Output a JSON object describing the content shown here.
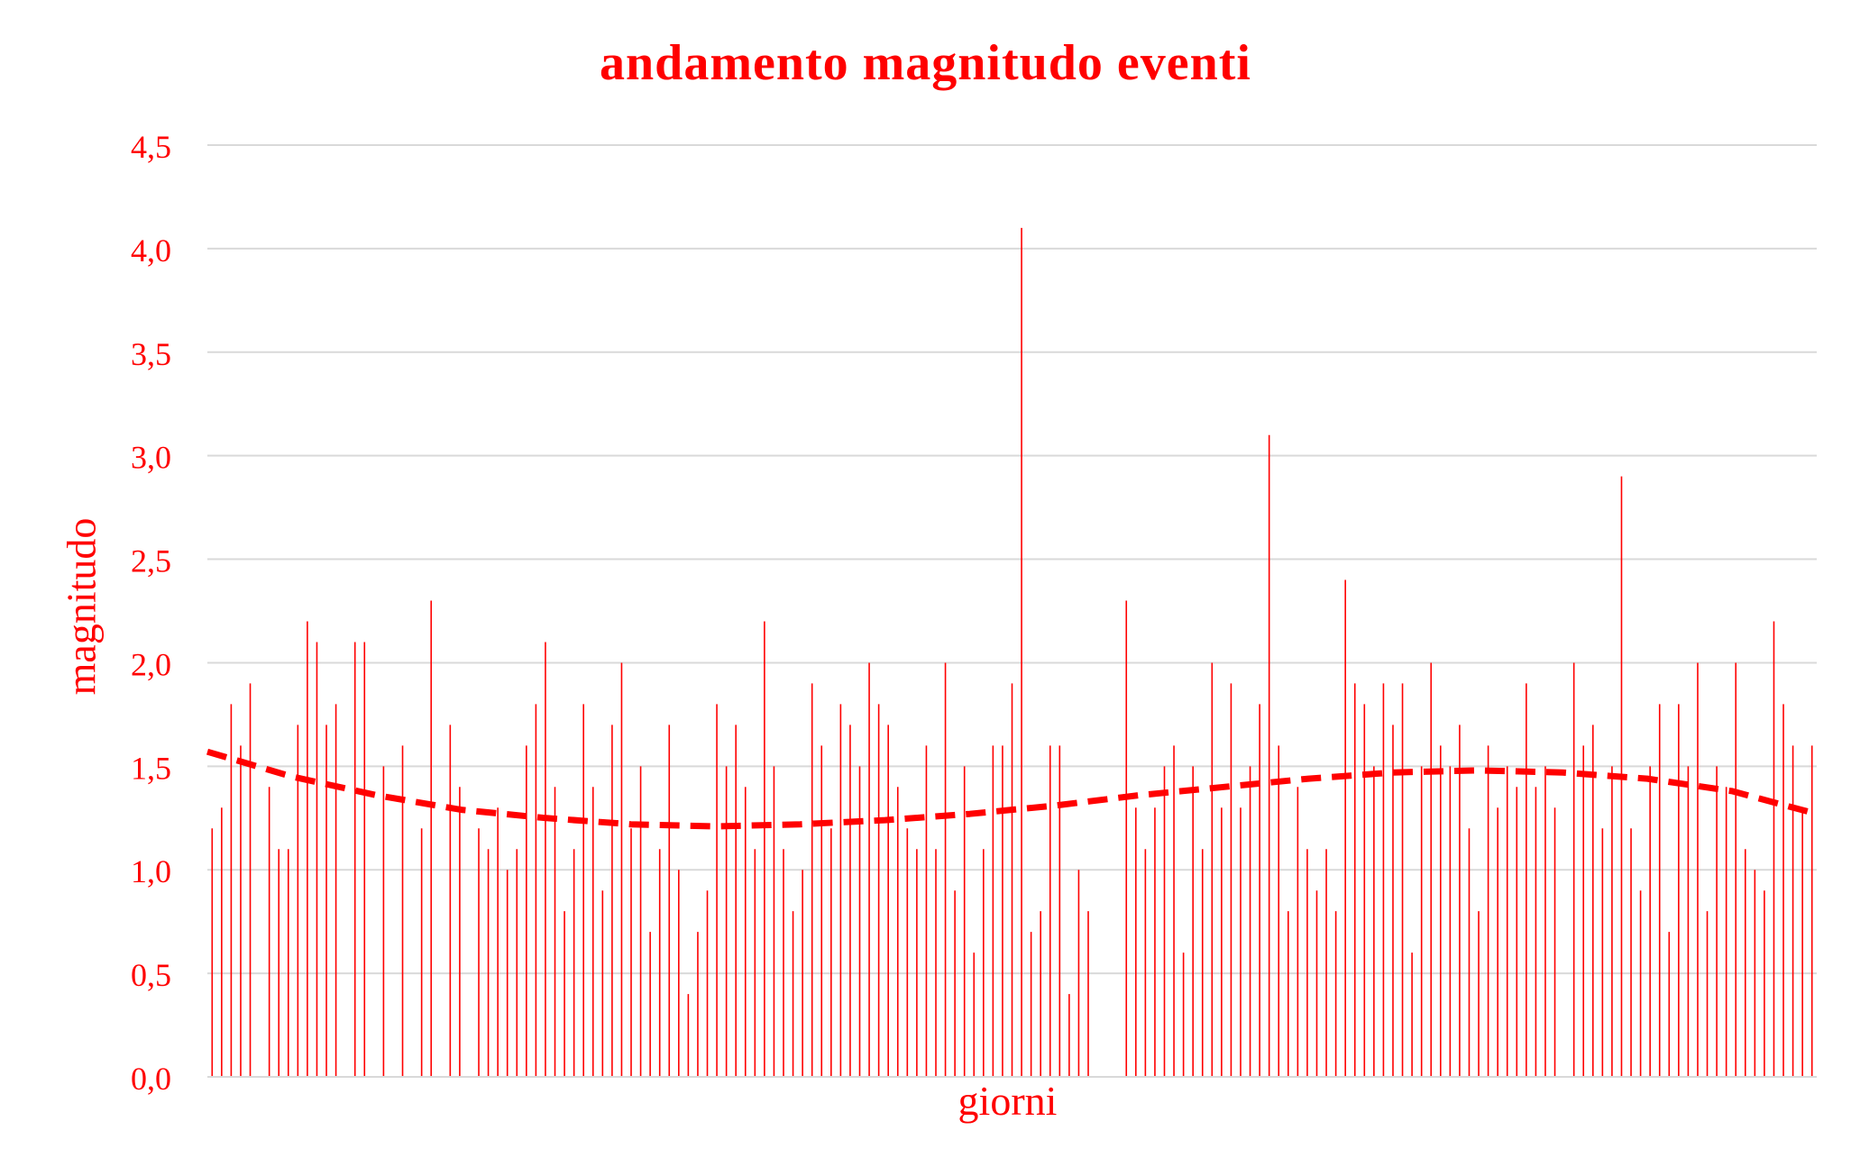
{
  "chart_data": {
    "type": "bar",
    "title": "andamento magnitudo eventi",
    "xlabel": "giorni",
    "ylabel": "magnitudo",
    "ylim": [
      0,
      4.5
    ],
    "yticks": [
      "0,0",
      "0,5",
      "1,0",
      "1,5",
      "2,0",
      "2,5",
      "3,0",
      "3,5",
      "4,0",
      "4,5"
    ],
    "grid": true,
    "legend": "none",
    "series": [
      {
        "values": [
          1.2,
          1.3,
          1.8,
          1.6,
          1.9,
          0,
          1.4,
          1.1,
          1.1,
          1.7,
          2.2,
          2.1,
          1.7,
          1.8,
          0,
          2.1,
          2.1,
          0,
          1.5,
          0,
          1.6,
          0,
          1.2,
          2.3,
          0,
          1.7,
          1.4,
          0,
          1.2,
          1.1,
          1.3,
          1.0,
          1.1,
          1.6,
          1.8,
          2.1,
          1.4,
          0.8,
          1.1,
          1.8,
          1.4,
          0.9,
          1.7,
          2.0,
          1.2,
          1.5,
          0.7,
          1.1,
          1.7,
          1.0,
          0.4,
          0.7,
          0.9,
          1.8,
          1.5,
          1.7,
          1.4,
          1.1,
          2.2,
          1.5,
          1.1,
          0.8,
          1.0,
          1.9,
          1.6,
          1.2,
          1.8,
          1.7,
          1.5,
          2.0,
          1.8,
          1.7,
          1.4,
          1.2,
          1.1,
          1.6,
          1.1,
          2.0,
          0.9,
          1.5,
          0.6,
          1.1,
          1.6,
          1.6,
          1.9,
          4.1,
          0.7,
          0.8,
          1.6,
          1.6,
          0.4,
          1.0,
          0.8,
          0,
          0,
          0,
          2.3,
          1.3,
          1.1,
          1.3,
          1.5,
          1.6,
          0.6,
          1.5,
          1.1,
          2.0,
          1.3,
          1.9,
          1.3,
          1.5,
          1.8,
          3.1,
          1.6,
          0.8,
          1.4,
          1.1,
          0.9,
          1.1,
          0.8,
          2.4,
          1.9,
          1.8,
          1.5,
          1.9,
          1.7,
          1.9,
          0.6,
          1.5,
          2.0,
          1.6,
          1.5,
          1.7,
          1.2,
          0.8,
          1.6,
          1.3,
          1.5,
          1.4,
          1.9,
          1.4,
          1.5,
          1.3,
          0,
          2.0,
          1.6,
          1.7,
          1.2,
          1.5,
          2.9,
          1.2,
          0.9,
          1.5,
          1.8,
          0.7,
          1.8,
          1.5,
          2.0,
          0.8,
          1.5,
          1.4,
          2.0,
          1.1,
          1.0,
          0.9,
          2.2,
          1.8,
          1.6,
          1.3,
          1.6
        ]
      }
    ],
    "trendline": {
      "style": "dashed",
      "type": "polynomial",
      "values": [
        1.57,
        1.45,
        1.36,
        1.29,
        1.25,
        1.22,
        1.21,
        1.22,
        1.24,
        1.27,
        1.31,
        1.36,
        1.4,
        1.44,
        1.47,
        1.48,
        1.47,
        1.44,
        1.38,
        1.27
      ]
    },
    "colors": {
      "series": "#ff0000",
      "grid": "#d9d9d9",
      "text": "#ff0000"
    }
  }
}
